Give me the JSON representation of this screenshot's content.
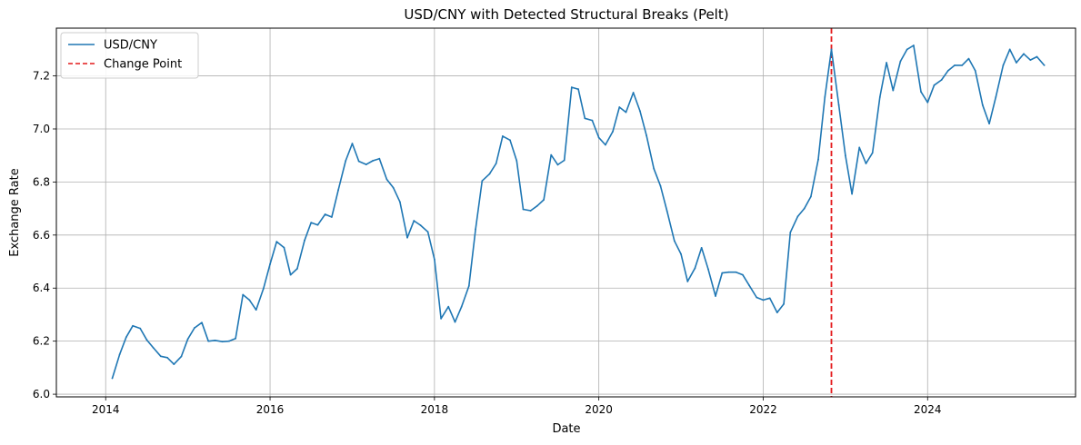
{
  "chart_data": {
    "type": "line",
    "title": "USD/CNY with Detected Structural Breaks (Pelt)",
    "xlabel": "Date",
    "ylabel": "Exchange Rate",
    "xlim": [
      2013.4,
      2025.8
    ],
    "ylim": [
      5.99,
      7.38
    ],
    "x_ticks": [
      2014,
      2016,
      2018,
      2020,
      2022,
      2024
    ],
    "y_ticks": [
      6.0,
      6.2,
      6.4,
      6.6,
      6.8,
      7.0,
      7.2
    ],
    "y_tick_labels": [
      "6.0",
      "6.2",
      "6.4",
      "6.6",
      "6.8",
      "7.0",
      "7.2"
    ],
    "grid": true,
    "legend_position": "top-left",
    "colors": {
      "series": "#1f77b4",
      "change_point": "#e41a1c"
    },
    "series": [
      {
        "name": "USD/CNY",
        "x": [
          2014.08,
          2014.17,
          2014.25,
          2014.33,
          2014.42,
          2014.5,
          2014.58,
          2014.67,
          2014.75,
          2014.83,
          2014.92,
          2015.0,
          2015.08,
          2015.17,
          2015.25,
          2015.33,
          2015.42,
          2015.5,
          2015.58,
          2015.67,
          2015.75,
          2015.83,
          2015.92,
          2016.0,
          2016.08,
          2016.17,
          2016.25,
          2016.33,
          2016.42,
          2016.5,
          2016.58,
          2016.67,
          2016.75,
          2016.83,
          2016.92,
          2017.0,
          2017.08,
          2017.17,
          2017.25,
          2017.33,
          2017.42,
          2017.5,
          2017.58,
          2017.67,
          2017.75,
          2017.83,
          2017.92,
          2018.0,
          2018.08,
          2018.17,
          2018.25,
          2018.33,
          2018.42,
          2018.5,
          2018.58,
          2018.67,
          2018.75,
          2018.83,
          2018.92,
          2019.0,
          2019.08,
          2019.17,
          2019.25,
          2019.33,
          2019.42,
          2019.5,
          2019.58,
          2019.67,
          2019.75,
          2019.83,
          2019.92,
          2020.0,
          2020.08,
          2020.17,
          2020.25,
          2020.33,
          2020.42,
          2020.5,
          2020.58,
          2020.67,
          2020.75,
          2020.83,
          2020.92,
          2021.0,
          2021.08,
          2021.17,
          2021.25,
          2021.33,
          2021.42,
          2021.5,
          2021.58,
          2021.67,
          2021.75,
          2021.83,
          2021.92,
          2022.0,
          2022.08,
          2022.17,
          2022.25,
          2022.33,
          2022.42,
          2022.5,
          2022.58,
          2022.67,
          2022.75,
          2022.83,
          2022.92,
          2023.0,
          2023.08,
          2023.17,
          2023.25,
          2023.33,
          2023.42,
          2023.5,
          2023.58,
          2023.67,
          2023.75,
          2023.83,
          2023.92,
          2024.0,
          2024.08,
          2024.17,
          2024.25,
          2024.33,
          2024.42,
          2024.5,
          2024.58,
          2024.67,
          2024.75,
          2024.83,
          2024.92,
          2025.0,
          2025.08,
          2025.17,
          2025.25,
          2025.33,
          2025.42
        ],
        "values": [
          6.06,
          6.15,
          6.215,
          6.258,
          6.248,
          6.205,
          6.175,
          6.143,
          6.138,
          6.113,
          6.142,
          6.208,
          6.25,
          6.27,
          6.2,
          6.203,
          6.198,
          6.2,
          6.21,
          6.375,
          6.355,
          6.318,
          6.398,
          6.49,
          6.575,
          6.553,
          6.45,
          6.473,
          6.58,
          6.647,
          6.638,
          6.678,
          6.668,
          6.77,
          6.88,
          6.945,
          6.878,
          6.866,
          6.88,
          6.888,
          6.81,
          6.778,
          6.725,
          6.59,
          6.654,
          6.637,
          6.612,
          6.508,
          6.285,
          6.33,
          6.272,
          6.33,
          6.408,
          6.622,
          6.804,
          6.83,
          6.87,
          6.973,
          6.958,
          6.88,
          6.697,
          6.692,
          6.71,
          6.733,
          6.902,
          6.865,
          6.882,
          7.157,
          7.15,
          7.04,
          7.032,
          6.967,
          6.94,
          6.99,
          7.082,
          7.063,
          7.137,
          7.068,
          6.975,
          6.85,
          6.785,
          6.69,
          6.578,
          6.528,
          6.425,
          6.475,
          6.552,
          6.472,
          6.37,
          6.457,
          6.46,
          6.46,
          6.45,
          6.41,
          6.365,
          6.355,
          6.362,
          6.308,
          6.34,
          6.61,
          6.67,
          6.7,
          6.745,
          6.885,
          7.12,
          7.3,
          7.09,
          6.9,
          6.755,
          6.93,
          6.87,
          6.91,
          7.12,
          7.25,
          7.145,
          7.255,
          7.3,
          7.315,
          7.14,
          7.1,
          7.165,
          7.185,
          7.22,
          7.24,
          7.24,
          7.265,
          7.22,
          7.09,
          7.02,
          7.12,
          7.24,
          7.3,
          7.25,
          7.283,
          7.26,
          7.272,
          7.24
        ]
      }
    ],
    "change_points": [
      2022.83
    ],
    "legend": [
      {
        "label": "USD/CNY",
        "style": "solid"
      },
      {
        "label": "Change Point",
        "style": "dashed"
      }
    ]
  }
}
